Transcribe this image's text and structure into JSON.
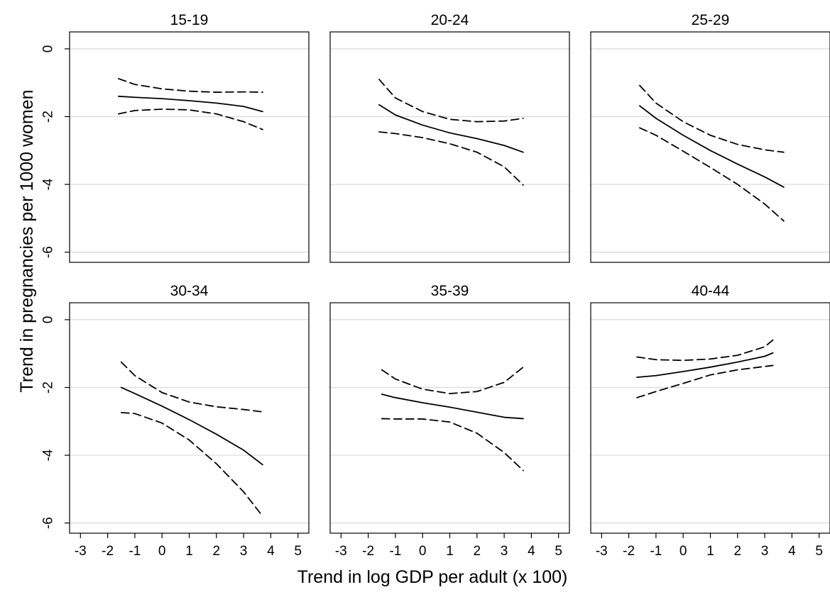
{
  "figure": {
    "ylabel": "Trend in pregnancies per 1000 women",
    "xlabel": "Trend in log GDP per adult (x 100)"
  },
  "colors": {
    "line": "#000000",
    "grid": "#d9d9d9",
    "frame": "#000000"
  },
  "chart_data": {
    "type": "line",
    "layout": "facet-grid-2x3",
    "xlim": [
      -3.4,
      5.4
    ],
    "ylim": [
      -6.3,
      0.5
    ],
    "x_ticks": [
      -3,
      -2,
      -1,
      0,
      1,
      2,
      3,
      4,
      5
    ],
    "x_tick_labels": [
      "-3",
      "-2",
      "-1",
      "0",
      "1",
      "2",
      "3",
      "4",
      "5"
    ],
    "y_ticks": [
      0,
      -2,
      -4,
      -6
    ],
    "y_tick_labels": [
      "0",
      "-2",
      "-4",
      "-6"
    ],
    "grid": "horizontal",
    "panels": [
      {
        "title": "15-19",
        "series": [
          {
            "role": "fit",
            "style": "solid",
            "x": [
              -1.6,
              -1.0,
              0.0,
              1.0,
              2.0,
              3.0,
              3.7
            ],
            "y": [
              -1.4,
              -1.43,
              -1.47,
              -1.53,
              -1.6,
              -1.7,
              -1.85
            ]
          },
          {
            "role": "upper",
            "style": "dashed",
            "x": [
              -1.6,
              -1.0,
              0.0,
              1.0,
              2.0,
              3.0,
              3.7
            ],
            "y": [
              -0.88,
              -1.05,
              -1.18,
              -1.25,
              -1.28,
              -1.27,
              -1.28
            ]
          },
          {
            "role": "lower",
            "style": "dashed",
            "x": [
              -1.6,
              -1.0,
              0.0,
              1.0,
              2.0,
              3.0,
              3.7
            ],
            "y": [
              -1.92,
              -1.82,
              -1.78,
              -1.8,
              -1.92,
              -2.15,
              -2.38
            ]
          }
        ]
      },
      {
        "title": "20-24",
        "series": [
          {
            "role": "fit",
            "style": "solid",
            "x": [
              -1.6,
              -1.0,
              0.0,
              1.0,
              2.0,
              3.0,
              3.7
            ],
            "y": [
              -1.65,
              -1.95,
              -2.25,
              -2.48,
              -2.65,
              -2.85,
              -3.05
            ]
          },
          {
            "role": "upper",
            "style": "dashed",
            "x": [
              -1.6,
              -1.0,
              0.0,
              1.0,
              2.0,
              3.0,
              3.7
            ],
            "y": [
              -0.9,
              -1.45,
              -1.85,
              -2.08,
              -2.15,
              -2.13,
              -2.05
            ]
          },
          {
            "role": "lower",
            "style": "dashed",
            "x": [
              -1.6,
              -1.0,
              0.0,
              1.0,
              2.0,
              3.0,
              3.7
            ],
            "y": [
              -2.45,
              -2.5,
              -2.62,
              -2.8,
              -3.05,
              -3.48,
              -4.02
            ]
          }
        ]
      },
      {
        "title": "25-29",
        "series": [
          {
            "role": "fit",
            "style": "solid",
            "x": [
              -1.6,
              -1.0,
              0.0,
              1.0,
              2.0,
              3.0,
              3.7
            ],
            "y": [
              -1.68,
              -2.05,
              -2.55,
              -3.0,
              -3.4,
              -3.78,
              -4.08
            ]
          },
          {
            "role": "upper",
            "style": "dashed",
            "x": [
              -1.6,
              -1.0,
              0.0,
              1.0,
              2.0,
              3.0,
              3.7
            ],
            "y": [
              -1.08,
              -1.6,
              -2.15,
              -2.55,
              -2.82,
              -2.98,
              -3.05
            ]
          },
          {
            "role": "lower",
            "style": "dashed",
            "x": [
              -1.6,
              -1.0,
              0.0,
              1.0,
              2.0,
              3.0,
              3.7
            ],
            "y": [
              -2.33,
              -2.55,
              -3.02,
              -3.5,
              -4.0,
              -4.58,
              -5.08
            ]
          }
        ]
      },
      {
        "title": "30-34",
        "series": [
          {
            "role": "fit",
            "style": "solid",
            "x": [
              -1.5,
              -1.0,
              0.0,
              1.0,
              2.0,
              3.0,
              3.7
            ],
            "y": [
              -2.0,
              -2.18,
              -2.55,
              -2.95,
              -3.38,
              -3.85,
              -4.28
            ]
          },
          {
            "role": "upper",
            "style": "dashed",
            "x": [
              -1.5,
              -1.0,
              0.0,
              1.0,
              2.0,
              3.0,
              3.7
            ],
            "y": [
              -1.25,
              -1.65,
              -2.15,
              -2.43,
              -2.57,
              -2.65,
              -2.72
            ]
          },
          {
            "role": "lower",
            "style": "dashed",
            "x": [
              -1.5,
              -1.0,
              0.0,
              1.0,
              2.0,
              3.0,
              3.7
            ],
            "y": [
              -2.74,
              -2.77,
              -3.05,
              -3.55,
              -4.25,
              -5.08,
              -5.8
            ]
          }
        ]
      },
      {
        "title": "35-39",
        "series": [
          {
            "role": "fit",
            "style": "solid",
            "x": [
              -1.5,
              -1.0,
              0.0,
              1.0,
              2.0,
              3.0,
              3.7
            ],
            "y": [
              -2.2,
              -2.3,
              -2.45,
              -2.58,
              -2.73,
              -2.88,
              -2.92
            ]
          },
          {
            "role": "upper",
            "style": "dashed",
            "x": [
              -1.5,
              -1.0,
              0.0,
              1.0,
              2.0,
              3.0,
              3.7
            ],
            "y": [
              -1.48,
              -1.75,
              -2.05,
              -2.18,
              -2.12,
              -1.85,
              -1.4
            ]
          },
          {
            "role": "lower",
            "style": "dashed",
            "x": [
              -1.5,
              -1.0,
              0.0,
              1.0,
              2.0,
              3.0,
              3.7
            ],
            "y": [
              -2.92,
              -2.93,
              -2.93,
              -3.02,
              -3.35,
              -3.92,
              -4.45
            ]
          }
        ]
      },
      {
        "title": "40-44",
        "series": [
          {
            "role": "fit",
            "style": "solid",
            "x": [
              -1.7,
              -1.0,
              0.0,
              1.0,
              2.0,
              3.0,
              3.3
            ],
            "y": [
              -1.7,
              -1.65,
              -1.53,
              -1.4,
              -1.25,
              -1.08,
              -0.98
            ]
          },
          {
            "role": "upper",
            "style": "dashed",
            "x": [
              -1.7,
              -1.0,
              0.0,
              1.0,
              2.0,
              3.0,
              3.3
            ],
            "y": [
              -1.1,
              -1.18,
              -1.2,
              -1.16,
              -1.05,
              -0.8,
              -0.6
            ]
          },
          {
            "role": "lower",
            "style": "dashed",
            "x": [
              -1.7,
              -1.0,
              0.0,
              1.0,
              2.0,
              3.0,
              3.3
            ],
            "y": [
              -2.3,
              -2.12,
              -1.88,
              -1.63,
              -1.48,
              -1.38,
              -1.35
            ]
          }
        ]
      }
    ]
  }
}
